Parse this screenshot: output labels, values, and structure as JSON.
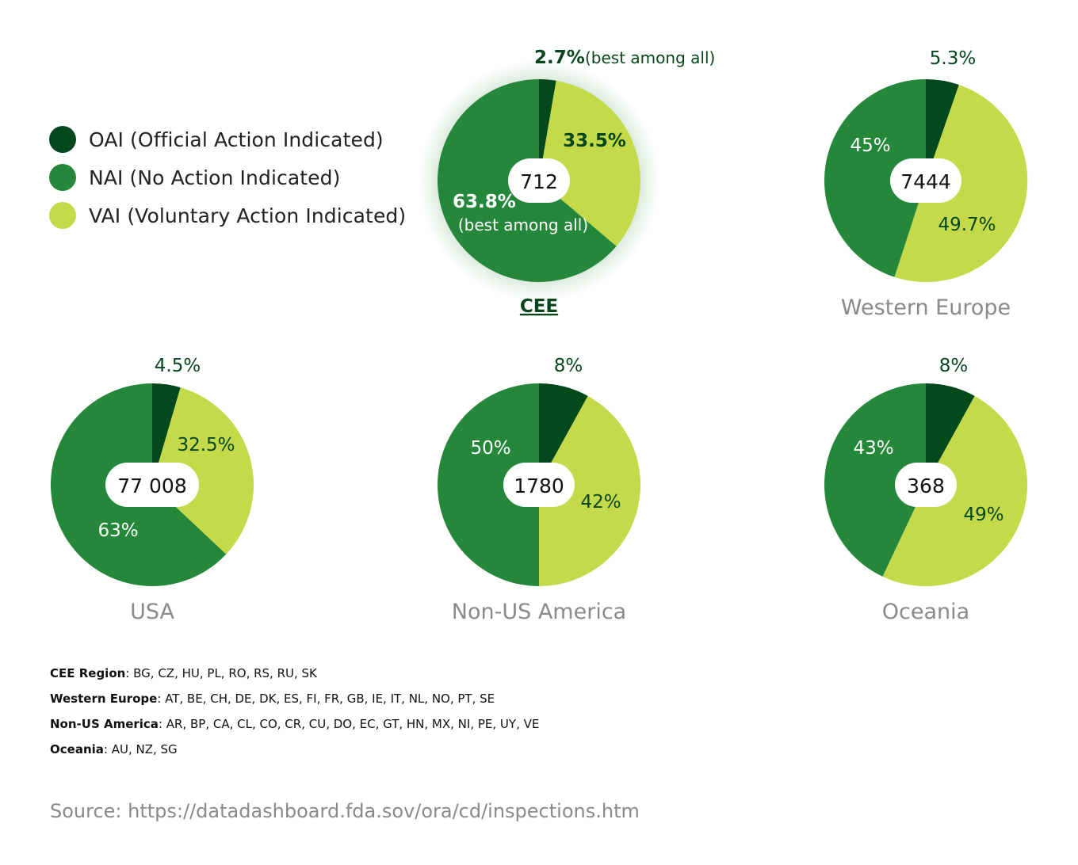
{
  "colors": {
    "oai": "#02491b",
    "nai": "#24873a",
    "vai": "#c4da4a",
    "label_dark": "#07461c",
    "label_muted": "#8a8a8a",
    "glow": "#2f8c3d"
  },
  "legend": [
    {
      "label": "OAI (Official Action Indicated)",
      "color_key": "oai"
    },
    {
      "label": "NAI (No Action Indicated)",
      "color_key": "nai"
    },
    {
      "label": "VAI (Voluntary Action Indicated)",
      "color_key": "vai"
    }
  ],
  "chart_data": [
    {
      "type": "pie",
      "region": "CEE",
      "total": "712",
      "highlight": true,
      "slices": [
        {
          "category": "OAI",
          "value": 2.7,
          "label": "2.7%",
          "note": "(best among all)"
        },
        {
          "category": "VAI",
          "value": 33.5,
          "label": "33.5%"
        },
        {
          "category": "NAI",
          "value": 63.8,
          "label": "63.8%",
          "note": "(best among all)"
        }
      ]
    },
    {
      "type": "pie",
      "region": "Western Europe",
      "total": "7444",
      "slices": [
        {
          "category": "OAI",
          "value": 5.3,
          "label": "5.3%"
        },
        {
          "category": "VAI",
          "value": 49.7,
          "label": "49.7%"
        },
        {
          "category": "NAI",
          "value": 45,
          "label": "45%"
        }
      ]
    },
    {
      "type": "pie",
      "region": "USA",
      "total": "77 008",
      "slices": [
        {
          "category": "OAI",
          "value": 4.5,
          "label": "4.5%"
        },
        {
          "category": "VAI",
          "value": 32.5,
          "label": "32.5%"
        },
        {
          "category": "NAI",
          "value": 63,
          "label": "63%"
        }
      ]
    },
    {
      "type": "pie",
      "region": "Non-US America",
      "total": "1780",
      "slices": [
        {
          "category": "OAI",
          "value": 8,
          "label": "8%"
        },
        {
          "category": "VAI",
          "value": 42,
          "label": "42%"
        },
        {
          "category": "NAI",
          "value": 50,
          "label": "50%"
        }
      ]
    },
    {
      "type": "pie",
      "region": "Oceania",
      "total": "368",
      "slices": [
        {
          "category": "OAI",
          "value": 8,
          "label": "8%"
        },
        {
          "category": "VAI",
          "value": 49,
          "label": "49%"
        },
        {
          "category": "NAI",
          "value": 43,
          "label": "43%"
        }
      ]
    }
  ],
  "footnotes": [
    {
      "term": "CEE Region",
      "text": ": BG, CZ, HU, PL, RO, RS, RU, SK"
    },
    {
      "term": "Western Europe",
      "text": ": AT, BE, CH, DE, DK, ES, FI, FR, GB, IE, IT, NL, NO, PT, SE"
    },
    {
      "term": "Non-US America",
      "text": ": AR, BP, CA, CL, CO, CR, CU, DO, EC, GT, HN, MX, NI, PE, UY, VE"
    },
    {
      "term": "Oceania",
      "text": ": AU, NZ, SG"
    }
  ],
  "source": "Source: https://datadashboard.fda.sov/ora/cd/inspections.htm"
}
